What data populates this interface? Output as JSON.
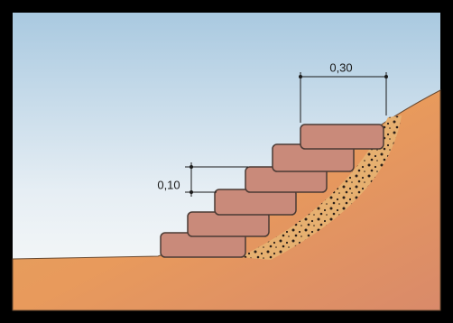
{
  "dimensions": {
    "width_label": "0,30",
    "height_label": "0,10"
  }
}
